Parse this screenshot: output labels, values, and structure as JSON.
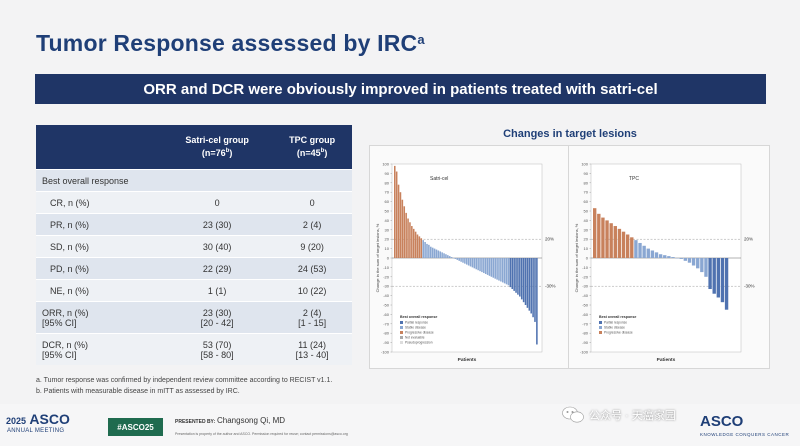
{
  "slide": {
    "title": "Tumor Response assessed by IRC",
    "title_sup": "a",
    "banner": "ORR and DCR were obviously improved in patients treated with satri-cel"
  },
  "table": {
    "headers": {
      "group1": "Satri-cel group",
      "group1_n": "(n=76",
      "group2": "TPC group",
      "group2_n": "(n=45",
      "sup": "b",
      "close": ")"
    },
    "section": "Best overall response",
    "rows": [
      {
        "label": "CR, n (%)",
        "g1": "0",
        "g2": "0"
      },
      {
        "label": "PR, n (%)",
        "g1": "23 (30)",
        "g2": "2 (4)"
      },
      {
        "label": "SD, n (%)",
        "g1": "30 (40)",
        "g2": "9 (20)"
      },
      {
        "label": "PD, n (%)",
        "g1": "22 (29)",
        "g2": "24 (53)"
      },
      {
        "label": "NE, n (%)",
        "g1": "1 (1)",
        "g2": "10 (22)"
      }
    ],
    "orr": {
      "label1": "ORR, n (%)",
      "label2": "[95% CI]",
      "g1a": "23 (30)",
      "g1b": "[20 - 42]",
      "g2a": "2 (4)",
      "g2b": "[1 - 15]"
    },
    "dcr": {
      "label1": "DCR, n (%)",
      "label2": "[95% CI]",
      "g1a": "53 (70)",
      "g1b": "[58 - 80]",
      "g2a": "11 (24)",
      "g2b": "[13 - 40]"
    }
  },
  "chart_title": "Changes in target lesions",
  "chart_data": [
    {
      "type": "bar",
      "title": "Satri-cel",
      "ylabel": "Change in the sum of target lesions, %",
      "xlabel": "Patients",
      "ylim": [
        -100,
        100
      ],
      "yticks": [
        "100",
        "90",
        "80",
        "70",
        "60",
        "50",
        "40",
        "30",
        "20",
        "10",
        "0",
        "-10",
        "-20",
        "-30",
        "-40",
        "-50",
        "-60",
        "-70",
        "-80",
        "-90",
        "-100"
      ],
      "reference_lines": [
        "20%",
        "-30%"
      ],
      "legend_title": "Best overall response",
      "legend": [
        "Partial response",
        "Stable disease",
        "Progressive disease",
        "Not evaluable",
        "Pseudoprogression"
      ],
      "colors": {
        "pd": "#c8815c",
        "sd": "#8aa7d2",
        "pr": "#4f72b0"
      },
      "values": [
        98,
        92,
        78,
        70,
        62,
        55,
        48,
        42,
        38,
        34,
        31,
        28,
        25,
        23,
        21,
        19,
        17,
        15,
        14,
        12,
        11,
        10,
        9,
        8,
        7,
        6,
        5,
        4,
        3,
        2,
        1,
        0,
        -1,
        -2,
        -3,
        -4,
        -5,
        -6,
        -7,
        -8,
        -9,
        -10,
        -11,
        -12,
        -13,
        -14,
        -15,
        -16,
        -17,
        -18,
        -19,
        -20,
        -21,
        -22,
        -23,
        -24,
        -25,
        -26,
        -27,
        -28,
        -29,
        -31,
        -33,
        -35,
        -37,
        -39,
        -41,
        -44,
        -47,
        -50,
        -53,
        -56,
        -59,
        -63,
        -68,
        -92
      ]
    },
    {
      "type": "bar",
      "title": "TPC",
      "ylabel": "Change in the sum of target lesions, %",
      "xlabel": "Patients",
      "ylim": [
        -100,
        100
      ],
      "yticks": [
        "100",
        "90",
        "80",
        "70",
        "60",
        "50",
        "40",
        "30",
        "20",
        "10",
        "0",
        "-10",
        "-20",
        "-30",
        "-40",
        "-50",
        "-60",
        "-70",
        "-80",
        "-90",
        "-100"
      ],
      "reference_lines": [
        "20%",
        "-30%"
      ],
      "legend_title": "Best overall response",
      "legend": [
        "Partial response",
        "Stable disease",
        "Progressive disease"
      ],
      "colors": {
        "pd": "#c8815c",
        "sd": "#8aa7d2",
        "pr": "#4f72b0"
      },
      "values": [
        53,
        47,
        43,
        40,
        37,
        34,
        31,
        28,
        25,
        22,
        19,
        16,
        13,
        10,
        8,
        6,
        4,
        3,
        2,
        1,
        0,
        -1,
        -3,
        -5,
        -8,
        -11,
        -15,
        -20,
        -33,
        -38,
        -42,
        -47,
        -55
      ]
    }
  ],
  "footnotes": [
    "a.   Tumor response was confirmed by independent review committee according to RECIST v1.1.",
    "b.   Patients with measurable disease in mITT as assessed by IRC."
  ],
  "footer": {
    "logo_year": "2025",
    "logo_text": "ASCO",
    "annual": "ANNUAL MEETING",
    "hashtag": "#ASCO25",
    "presented_by": "PRESENTED BY:",
    "presenter": "Changsong Qi, MD",
    "disclaimer": "Presentation is property of the author and ASCO. Permission required for reuse; contact permissions@asco.org",
    "wechat": "公众号 · 天癌家园",
    "asco": "ASCO",
    "asco_tag": "KNOWLEDGE CONQUERS CANCER"
  }
}
